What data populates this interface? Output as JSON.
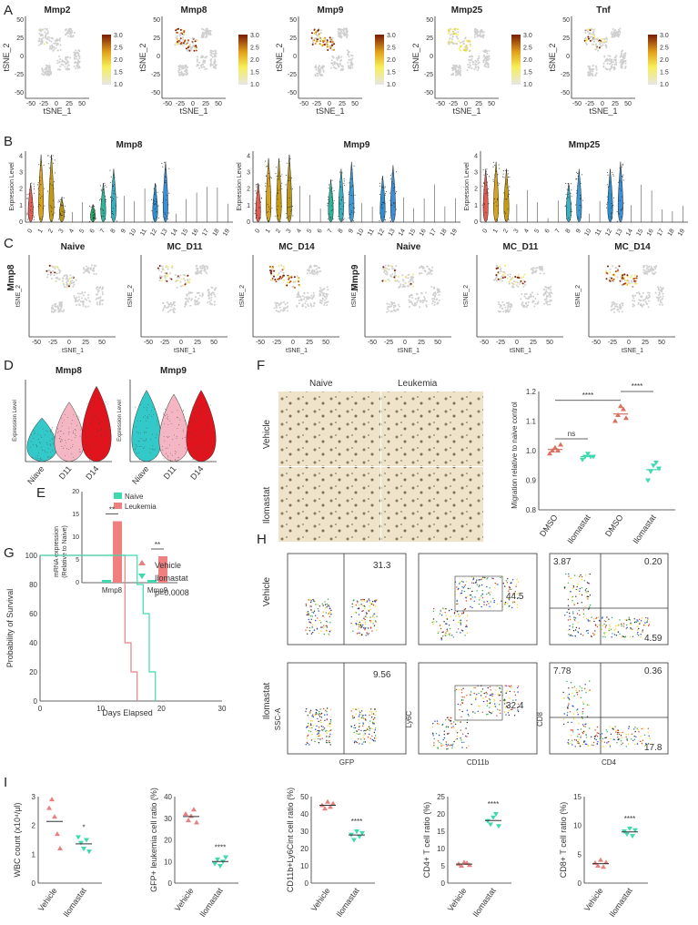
{
  "panels": {
    "A": "A",
    "B": "B",
    "C": "C",
    "D": "D",
    "E": "E",
    "F": "F",
    "G": "G",
    "H": "H",
    "I": "I"
  },
  "panelA": {
    "genes": [
      "Mmp2",
      "Mmp8",
      "Mmp9",
      "Mmp25",
      "Tnf"
    ],
    "xlabel": "tSNE_1",
    "ylabel": "tSNE_2",
    "xticks": [
      "-50",
      "-25",
      "0",
      "25",
      "50"
    ],
    "yticks": [
      "50",
      "25",
      "0",
      "-25",
      "-50"
    ],
    "legend_ticks": [
      "3.0",
      "2.5",
      "2.0",
      "1.5",
      "1.0"
    ]
  },
  "panelB": {
    "genes": [
      "Mmp8",
      "Mmp9",
      "Mmp25"
    ],
    "ylabel": "Expression Level",
    "clusters": [
      "0",
      "1",
      "2",
      "3",
      "4",
      "5",
      "6",
      "7",
      "8",
      "9",
      "10",
      "11",
      "12",
      "13",
      "14",
      "15",
      "16",
      "17",
      "18",
      "19"
    ],
    "yticks": [
      "0",
      "1",
      "2",
      "3",
      "4"
    ]
  },
  "panelC": {
    "row_labels": [
      "Mmp8",
      "Mmp9"
    ],
    "titles": [
      "Naive",
      "MC_D11",
      "MC_D14",
      "Naive",
      "MC_D11",
      "MC_D14"
    ],
    "xlabel": "tSNE_1",
    "ylabel": "tSNE_2"
  },
  "panelD": {
    "genes": [
      "Mmp8",
      "Mmp9"
    ],
    "ylabel": "Expression Level",
    "groups": [
      "Niave",
      "D11",
      "D14"
    ],
    "colors": [
      "#33c9c9",
      "#f4b6c2",
      "#e0141c"
    ]
  },
  "panelE": {
    "ylabel": "mRNA expression",
    "ylabel2": "(Relative to Naive)",
    "legend": [
      "Naive",
      "Leukemia"
    ],
    "colors": [
      "#3fd9b0",
      "#f08080"
    ],
    "yticks": [
      "0",
      "5",
      "10",
      "15",
      "20"
    ],
    "sig": [
      "**",
      "**"
    ],
    "chart_data": {
      "type": "bar",
      "categories": [
        "Mmp8",
        "Mmp9"
      ],
      "series": [
        {
          "name": "Naive",
          "values": [
            0.6,
            0.6
          ]
        },
        {
          "name": "Leukemia",
          "values": [
            13.5,
            5.8
          ]
        }
      ],
      "ylim": [
        0,
        20
      ]
    }
  },
  "panelF": {
    "col_titles": [
      "Naive",
      "Leukemia"
    ],
    "row_titles": [
      "Vehicle",
      "Ilomastat"
    ],
    "ylabel": "Migration relative to naive control",
    "xcats": [
      "DMSO",
      "Ilomastat",
      "DMSO",
      "Ilomastat"
    ],
    "yticks": [
      "0.8",
      "0.9",
      "1.0",
      "1.1",
      "1.2"
    ],
    "sig": [
      "****",
      "ns",
      "****"
    ],
    "chart_data": {
      "type": "scatter",
      "groups": [
        {
          "name": "DMSO",
          "values": [
            0.99,
            1.0,
            1.01,
            1.0,
            1.02
          ]
        },
        {
          "name": "Ilomastat",
          "values": [
            0.97,
            0.98,
            0.99,
            0.98,
            0.98
          ]
        },
        {
          "name": "DMSO",
          "values": [
            1.1,
            1.12,
            1.15,
            1.14,
            1.11
          ]
        },
        {
          "name": "Ilomastat",
          "values": [
            0.9,
            0.93,
            0.95,
            0.96,
            0.94
          ]
        }
      ],
      "ylim": [
        0.8,
        1.2
      ]
    }
  },
  "panelG": {
    "ylabel": "Probability of Survival",
    "xlabel": "Days Elapsed",
    "legend": [
      "Vehicle",
      "Ilomastat"
    ],
    "pval": "p=0.0008",
    "xticks": [
      "0",
      "10",
      "20",
      "30"
    ],
    "yticks": [
      "0",
      "20",
      "40",
      "60",
      "80",
      "100"
    ],
    "chart_data": {
      "type": "line",
      "series": [
        {
          "name": "Vehicle",
          "x": [
            0,
            14,
            14,
            15,
            15,
            16,
            16
          ],
          "y": [
            100,
            100,
            40,
            40,
            20,
            20,
            0
          ]
        },
        {
          "name": "Ilomastat",
          "x": [
            0,
            16,
            16,
            17,
            17,
            18,
            18,
            19,
            19
          ],
          "y": [
            100,
            100,
            80,
            80,
            60,
            60,
            20,
            20,
            0
          ]
        }
      ],
      "xlim": [
        0,
        30
      ],
      "ylim": [
        0,
        100
      ]
    }
  },
  "panelH": {
    "row_labels": [
      "Vehicle",
      "Ilomastat"
    ],
    "values": [
      [
        "31.3",
        "44.5",
        "3.87",
        "0.20",
        "4.59"
      ],
      [
        "9.56",
        "32.4",
        "7.78",
        "0.36",
        "17.8"
      ]
    ],
    "axis": {
      "gfp_x": "GFP",
      "ssc_y": "SSC-A",
      "cd11b_x": "CD11b",
      "ly6c_y": "Ly6C",
      "cd4_x": "CD4",
      "cd8_y": "CD8"
    }
  },
  "panelI": {
    "ylabels": [
      "WBC count (x10⁴/μl)",
      "GFP+ leukemia cell ratio (%)",
      "CD11b+Ly6Cint cell ratio (%)",
      "CD4+ T cell ratio (%)",
      "CD8+ T cell ratio (%)"
    ],
    "xcats": [
      "Vehicle",
      "Ilomastat"
    ],
    "sig": [
      "*",
      "****",
      "****",
      "****",
      "****"
    ],
    "chart_data": [
      {
        "type": "scatter",
        "yticks": [
          "0",
          "1",
          "2",
          "3"
        ],
        "ylim": [
          0,
          3
        ],
        "groups": [
          {
            "name": "Vehicle",
            "values": [
              2.6,
              2.9,
              2.3,
              1.7,
              1.2
            ]
          },
          {
            "name": "Ilomastat",
            "values": [
              1.6,
              1.4,
              1.2,
              1.5,
              1.1
            ]
          }
        ]
      },
      {
        "type": "scatter",
        "yticks": [
          "0",
          "10",
          "20",
          "30",
          "40"
        ],
        "ylim": [
          0,
          40
        ],
        "groups": [
          {
            "name": "Vehicle",
            "values": [
              32,
              29,
              31,
              34,
              28
            ]
          },
          {
            "name": "Ilomastat",
            "values": [
              9,
              11,
              8,
              10,
              12
            ]
          }
        ]
      },
      {
        "type": "scatter",
        "yticks": [
          "0",
          "10",
          "20",
          "30",
          "40",
          "50"
        ],
        "ylim": [
          0,
          50
        ],
        "groups": [
          {
            "name": "Vehicle",
            "values": [
              45,
              43,
              47,
              44,
              46
            ]
          },
          {
            "name": "Ilomastat",
            "values": [
              28,
              25,
              30,
              27,
              29
            ]
          }
        ]
      },
      {
        "type": "scatter",
        "yticks": [
          "0",
          "5",
          "10",
          "15",
          "20",
          "25"
        ],
        "ylim": [
          0,
          25
        ],
        "groups": [
          {
            "name": "Vehicle",
            "values": [
              5.5,
              5,
              6,
              5.8,
              5.2
            ]
          },
          {
            "name": "Ilomastat",
            "values": [
              18,
              17,
              19,
              20,
              16.5
            ]
          }
        ]
      },
      {
        "type": "scatter",
        "yticks": [
          "0",
          "5",
          "10",
          "15"
        ],
        "ylim": [
          0,
          15
        ],
        "groups": [
          {
            "name": "Vehicle",
            "values": [
              3.5,
              3,
              4,
              2.8,
              3.6
            ]
          },
          {
            "name": "Ilomastat",
            "values": [
              9,
              8.5,
              9.5,
              8.2,
              9.2
            ]
          }
        ]
      }
    ]
  }
}
